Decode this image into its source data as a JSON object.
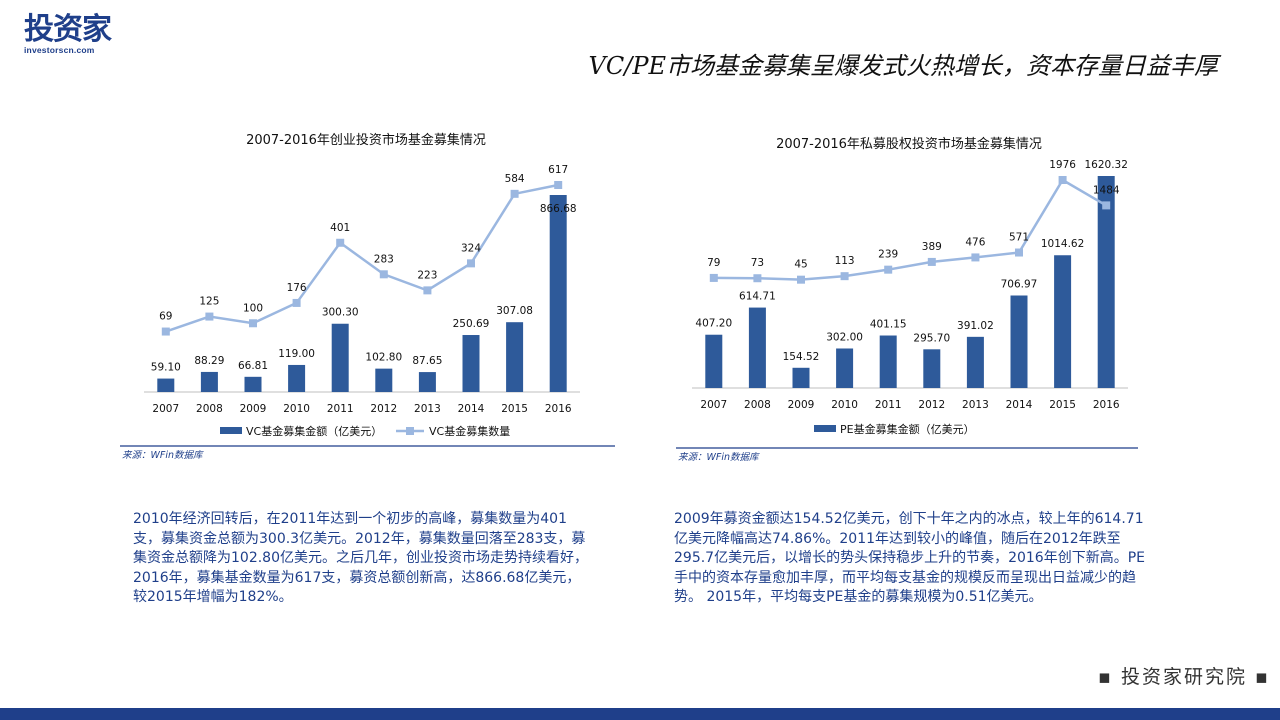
{
  "logo": {
    "main": "投资家",
    "sub": "investorscn.com"
  },
  "slide_title": "VC/PE市场基金募集呈爆发式火热增长，资本存量日益丰厚",
  "chart_data": [
    {
      "type": "bar",
      "title": "2007-2016年创业投资市场基金募集情况",
      "categories": [
        "2007",
        "2008",
        "2009",
        "2010",
        "2011",
        "2012",
        "2013",
        "2014",
        "2015",
        "2016"
      ],
      "series": [
        {
          "name": "VC基金募集金额（亿美元）",
          "type": "bar",
          "values": [
            59.1,
            88.29,
            66.81,
            119.0,
            300.3,
            102.8,
            87.65,
            250.69,
            307.08,
            866.68
          ],
          "labels": [
            "59.10",
            "88.29",
            "66.81",
            "119.00",
            "300.30",
            "102.80",
            "87.65",
            "250.69",
            "307.08",
            "866.68"
          ]
        },
        {
          "name": "VC基金募集数量",
          "type": "line",
          "values": [
            69,
            125,
            100,
            176,
            401,
            283,
            223,
            324,
            584,
            617
          ],
          "labels": [
            "69",
            "125",
            "100",
            "176",
            "401",
            "283",
            "223",
            "324",
            "584",
            "617"
          ]
        }
      ],
      "source": "来源：WFin数据库",
      "legend": "bottom",
      "grid": false
    },
    {
      "type": "bar",
      "title": "2007-2016年私募股权投资市场基金募集情况",
      "categories": [
        "2007",
        "2008",
        "2009",
        "2010",
        "2011",
        "2012",
        "2013",
        "2014",
        "2015",
        "2016"
      ],
      "series": [
        {
          "name": "PE基金募集金额（亿美元）",
          "type": "bar",
          "values": [
            407.2,
            614.71,
            154.52,
            302.0,
            401.15,
            295.7,
            391.02,
            706.97,
            1014.62,
            1620.32
          ],
          "labels": [
            "407.20",
            "614.71",
            "154.52",
            "302.00",
            "401.15",
            "295.70",
            "391.02",
            "706.97",
            "1014.62",
            "1620.32"
          ]
        },
        {
          "type": "line",
          "values": [
            79,
            73,
            45,
            113,
            239,
            389,
            476,
            571,
            1976,
            1484
          ],
          "labels": [
            "79",
            "73",
            "45",
            "113",
            "239",
            "389",
            "476",
            "571",
            "1976",
            "1484"
          ]
        }
      ],
      "source": "来源：WFin数据库",
      "legend": "bottom",
      "grid": false
    }
  ],
  "descriptions": {
    "vc": " 2010年经济回转后，在2011年达到一个初步的高峰，募集数量为401支，募集资金总额为300.3亿美元。2012年，募集数量回落至283支，募集资金总额降为102.80亿美元。之后几年，创业投资市场走势持续看好，2016年，募集基金数量为617支，募资总额创新高，达866.68亿美元，较2015年增幅为182%。",
    "pe": "2009年募资金额达154.52亿美元，创下十年之内的冰点，较上年的614.71亿美元降幅高达74.86%。2011年达到较小的峰值，随后在2012年跌至295.7亿美元后，以增长的势头保持稳步上升的节奏，2016年创下新高。PE手中的资本存量愈加丰厚，而平均每支基金的规模反而呈现出日益减少的趋势。 2015年，平均每支PE基金的募集规模为0.51亿美元。"
  },
  "footer": {
    "brand": "投资家研究院",
    "bullet": "▪"
  },
  "colors": {
    "bar": "#2e5a9a",
    "line": "#9bb7e0",
    "brand": "#1f3f8a",
    "text": "#1f3f8a"
  }
}
